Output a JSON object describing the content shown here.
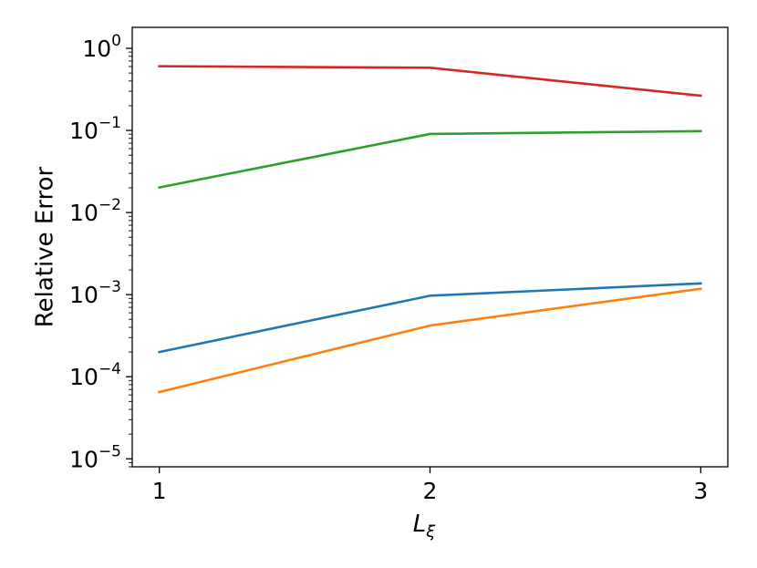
{
  "chart_data": {
    "type": "line",
    "xlabel": "L",
    "xlabel_subscript": "ξ",
    "ylabel": "Relative Error",
    "yscale": "log",
    "ylim": [
      8e-06,
      1.8
    ],
    "xlim": [
      0.9,
      3.1
    ],
    "x_ticks": [
      {
        "value": 1,
        "label": "1"
      },
      {
        "value": 2,
        "label": "2"
      },
      {
        "value": 3,
        "label": "3"
      }
    ],
    "y_ticks": [
      {
        "value": 1,
        "base": "10",
        "exp": "0"
      },
      {
        "value": 0.1,
        "base": "10",
        "exp": "−1"
      },
      {
        "value": 0.01,
        "base": "10",
        "exp": "−2"
      },
      {
        "value": 0.001,
        "base": "10",
        "exp": "−3"
      },
      {
        "value": 0.0001,
        "base": "10",
        "exp": "−4"
      },
      {
        "value": 1e-05,
        "base": "10",
        "exp": "−5"
      }
    ],
    "grid": false,
    "x": [
      1,
      2,
      3
    ],
    "series": [
      {
        "color": "#1f77b4",
        "values": [
          0.0002,
          0.00097,
          0.00137
        ]
      },
      {
        "color": "#ff7f0e",
        "values": [
          6.5e-05,
          0.00042,
          0.00118
        ]
      },
      {
        "color": "#2ca02c",
        "values": [
          0.0202,
          0.0905,
          0.098
        ]
      },
      {
        "color": "#d62728",
        "values": [
          0.605,
          0.58,
          0.265
        ]
      }
    ]
  }
}
